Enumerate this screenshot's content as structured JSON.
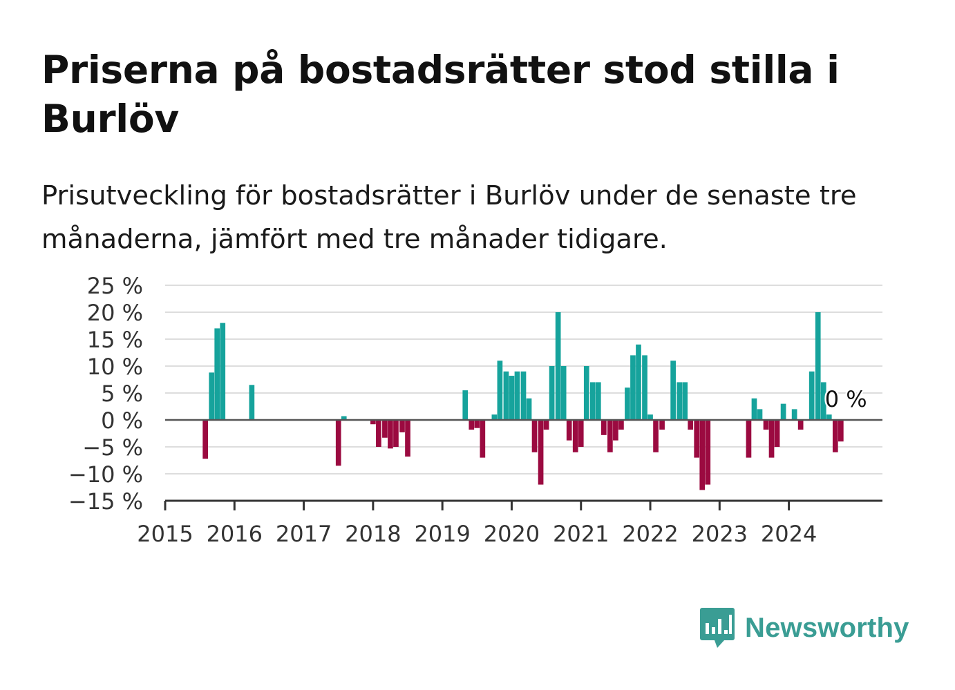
{
  "title": "Priserna på bostadsrätter stod stilla i Burlöv",
  "subtitle": "Prisutveckling för bostadsrätter i Burlöv under de senaste tre månaderna, jämfört med tre månader tidigare.",
  "brand": {
    "name": "Newsworthy",
    "icon": "bar-chart-speech-bubble-icon"
  },
  "colors": {
    "positive": "#16a39c",
    "negative": "#9b0a40",
    "grid": "#dddddd",
    "axis": "#333333",
    "brand": "#3a9d94"
  },
  "chart_data": {
    "type": "bar",
    "unit": "%",
    "x_unit": "date (year.month)",
    "ylim": [
      -15,
      25
    ],
    "y_ticks": [
      -15,
      -10,
      -5,
      0,
      5,
      10,
      15,
      20,
      25
    ],
    "y_tick_labels": [
      "−15 %",
      "−10 %",
      "−5 %",
      "0 %",
      "5 %",
      "10 %",
      "15 %",
      "20 %",
      "25 %"
    ],
    "xlim": [
      2015.0,
      2025.35
    ],
    "x_ticks": [
      2015,
      2016,
      2017,
      2018,
      2019,
      2020,
      2021,
      2022,
      2023,
      2024
    ],
    "x_tick_labels": [
      "2015",
      "2016",
      "2017",
      "2018",
      "2019",
      "2020",
      "2021",
      "2022",
      "2023",
      "2024"
    ],
    "grid": true,
    "legend": "none",
    "end_label": "0 %",
    "series": [
      {
        "points": [
          [
            2015.58,
            -7.2
          ],
          [
            2015.67,
            8.8
          ],
          [
            2015.75,
            17.0
          ],
          [
            2015.83,
            18.0
          ],
          [
            2016.25,
            6.5
          ],
          [
            2017.5,
            -8.5
          ],
          [
            2017.58,
            0.7
          ],
          [
            2018.0,
            -0.8
          ],
          [
            2018.08,
            -5.0
          ],
          [
            2018.17,
            -3.3
          ],
          [
            2018.25,
            -5.3
          ],
          [
            2018.33,
            -5.0
          ],
          [
            2018.42,
            -2.3
          ],
          [
            2018.5,
            -6.8
          ],
          [
            2019.33,
            5.5
          ],
          [
            2019.42,
            -1.8
          ],
          [
            2019.5,
            -1.5
          ],
          [
            2019.58,
            -7.0
          ],
          [
            2019.75,
            1.0
          ],
          [
            2019.83,
            11.0
          ],
          [
            2019.92,
            9.0
          ],
          [
            2020.0,
            8.2
          ],
          [
            2020.08,
            9.0
          ],
          [
            2020.17,
            9.0
          ],
          [
            2020.25,
            4.0
          ],
          [
            2020.33,
            -6.0
          ],
          [
            2020.42,
            -12.0
          ],
          [
            2020.5,
            -1.8
          ],
          [
            2020.58,
            10.0
          ],
          [
            2020.67,
            20.0
          ],
          [
            2020.75,
            10.0
          ],
          [
            2020.83,
            -3.8
          ],
          [
            2020.92,
            -6.0
          ],
          [
            2021.0,
            -5.0
          ],
          [
            2021.08,
            10.0
          ],
          [
            2021.17,
            7.0
          ],
          [
            2021.25,
            7.0
          ],
          [
            2021.33,
            -2.8
          ],
          [
            2021.42,
            -6.0
          ],
          [
            2021.5,
            -3.8
          ],
          [
            2021.58,
            -1.8
          ],
          [
            2021.67,
            6.0
          ],
          [
            2021.75,
            12.0
          ],
          [
            2021.83,
            14.0
          ],
          [
            2021.92,
            12.0
          ],
          [
            2022.0,
            1.0
          ],
          [
            2022.08,
            -6.0
          ],
          [
            2022.17,
            -1.8
          ],
          [
            2022.33,
            11.0
          ],
          [
            2022.42,
            7.0
          ],
          [
            2022.5,
            7.0
          ],
          [
            2022.58,
            -1.8
          ],
          [
            2022.67,
            -7.0
          ],
          [
            2022.75,
            -13.0
          ],
          [
            2022.83,
            -12.0
          ],
          [
            2023.42,
            -7.0
          ],
          [
            2023.5,
            4.0
          ],
          [
            2023.58,
            2.0
          ],
          [
            2023.67,
            -1.8
          ],
          [
            2023.75,
            -7.0
          ],
          [
            2023.83,
            -5.0
          ],
          [
            2023.92,
            3.0
          ],
          [
            2024.08,
            2.0
          ],
          [
            2024.17,
            -1.8
          ],
          [
            2024.33,
            9.0
          ],
          [
            2024.42,
            20.0
          ],
          [
            2024.5,
            7.0
          ],
          [
            2024.58,
            1.0
          ],
          [
            2024.67,
            -6.0
          ],
          [
            2024.75,
            -4.0
          ]
        ]
      }
    ]
  }
}
